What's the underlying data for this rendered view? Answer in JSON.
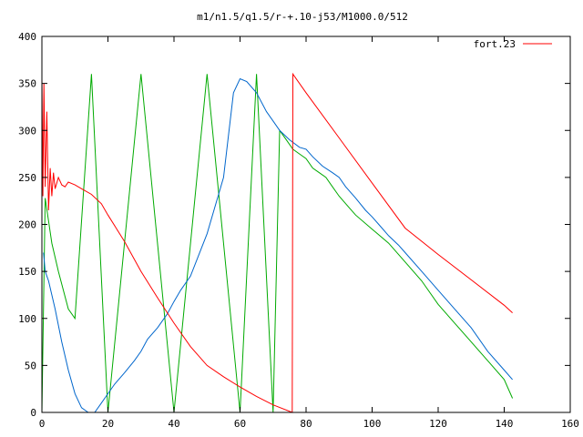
{
  "chart_data": {
    "type": "line",
    "title": "m1/n1.5/q1.5/r-+.10-j53/M1000.0/512",
    "xlabel": "",
    "ylabel": "",
    "xlim": [
      0,
      160
    ],
    "ylim": [
      0,
      400
    ],
    "xticks": [
      0,
      20,
      40,
      60,
      80,
      100,
      120,
      140,
      160
    ],
    "yticks": [
      0,
      50,
      100,
      150,
      200,
      250,
      300,
      350,
      400
    ],
    "grid": false,
    "legend_position": "top-right",
    "series": [
      {
        "name": "fort.23",
        "color": "#ff0000",
        "x": [
          0,
          0.3,
          0.6,
          1,
          1.5,
          2,
          2.5,
          3,
          3.5,
          4,
          5,
          6,
          7,
          8,
          10,
          12,
          15,
          18,
          20,
          25,
          30,
          35,
          40,
          45,
          50,
          55,
          60,
          65,
          70,
          75.8,
          76,
          80,
          90,
          100,
          110,
          120,
          130,
          140,
          142.5
        ],
        "y": [
          355,
          230,
          350,
          240,
          320,
          215,
          260,
          230,
          255,
          238,
          250,
          242,
          240,
          245,
          242,
          238,
          232,
          222,
          210,
          182,
          150,
          122,
          95,
          70,
          50,
          38,
          27,
          17,
          8,
          0,
          360,
          340,
          292,
          244,
          196,
          168,
          141,
          114,
          106
        ]
      },
      {
        "name": "",
        "color": "#00aa00",
        "x": [
          0,
          1,
          3,
          5,
          8,
          10,
          15,
          20,
          30,
          40,
          50,
          60,
          65,
          70,
          72,
          74,
          76,
          78,
          80,
          82,
          84,
          86,
          88,
          90,
          95,
          100,
          105,
          110,
          115,
          120,
          125,
          130,
          135,
          140,
          142.5
        ],
        "y": [
          0,
          228,
          180,
          150,
          110,
          100,
          360,
          0,
          360,
          0,
          360,
          0,
          360,
          0,
          300,
          290,
          280,
          275,
          270,
          260,
          255,
          250,
          240,
          230,
          210,
          195,
          180,
          160,
          140,
          115,
          95,
          75,
          55,
          35,
          15
        ]
      },
      {
        "name": "",
        "color": "#0066cc",
        "x": [
          0.5,
          1,
          2,
          4,
          6,
          8,
          10,
          12,
          14,
          16,
          18,
          20,
          22,
          25,
          28,
          30,
          32,
          35,
          38,
          40,
          42,
          45,
          50,
          55,
          58,
          60,
          62,
          65,
          68,
          70,
          72,
          75,
          78,
          80,
          82,
          85,
          88,
          90,
          92,
          95,
          98,
          100,
          102,
          105,
          108,
          110,
          115,
          120,
          125,
          130,
          135,
          140,
          142.5
        ],
        "y": [
          170,
          150,
          140,
          110,
          75,
          45,
          20,
          5,
          0,
          0,
          10,
          20,
          30,
          42,
          55,
          65,
          78,
          90,
          105,
          118,
          130,
          145,
          190,
          250,
          340,
          355,
          352,
          340,
          320,
          310,
          300,
          290,
          282,
          280,
          272,
          262,
          255,
          250,
          240,
          228,
          215,
          208,
          200,
          188,
          178,
          170,
          150,
          130,
          110,
          90,
          65,
          45,
          35
        ]
      }
    ]
  }
}
